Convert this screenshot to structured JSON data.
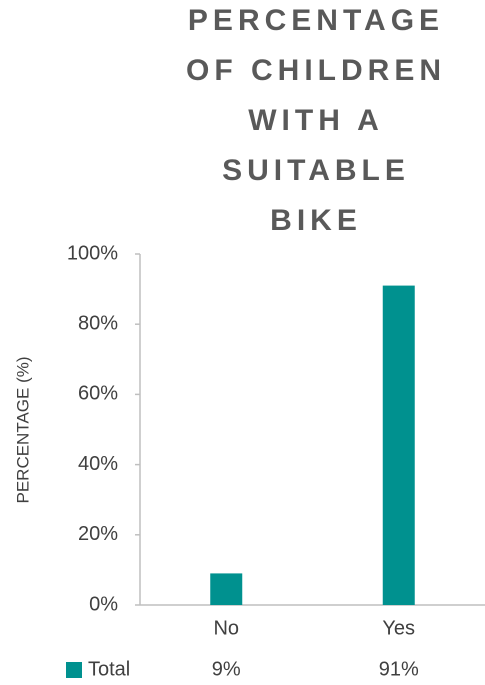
{
  "chart_data": {
    "type": "bar",
    "title": "PERCENTAGE OF CHILDREN WITH A SUITABLE BIKE",
    "y_label": "PERCENTAGE (%)",
    "categories": [
      "No",
      "Yes"
    ],
    "series": [
      {
        "name": "Total",
        "color": "#00918f",
        "values": [
          9,
          91
        ],
        "value_labels": [
          "9%",
          "91%"
        ]
      }
    ],
    "ylim": [
      0,
      100
    ],
    "yticks": [
      {
        "value": 0,
        "label": "0%"
      },
      {
        "value": 20,
        "label": "20%"
      },
      {
        "value": 40,
        "label": "40%"
      },
      {
        "value": 60,
        "label": "60%"
      },
      {
        "value": 80,
        "label": "80%"
      },
      {
        "value": 100,
        "label": "100%"
      }
    ],
    "grid": false
  }
}
